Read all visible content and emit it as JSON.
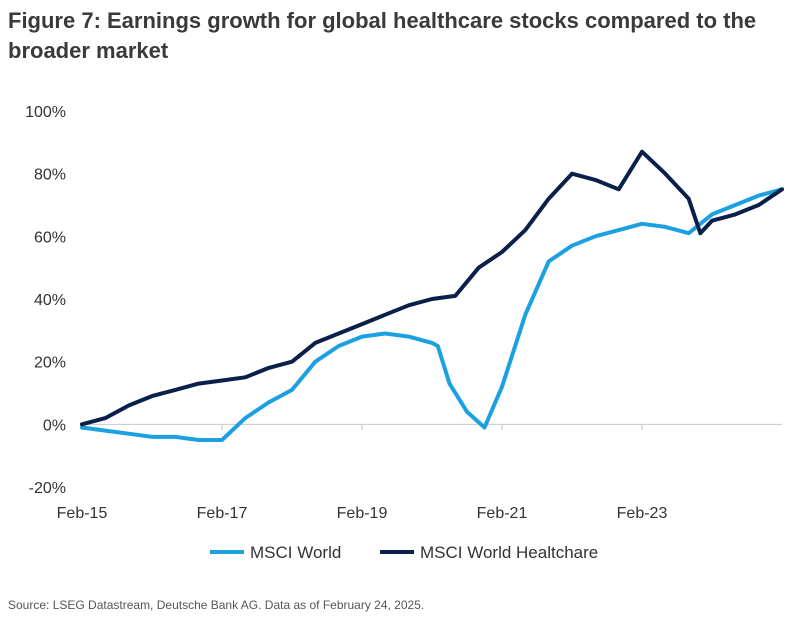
{
  "chart_data": {
    "type": "line",
    "title": "Figure 7: Earnings growth for global healthcare stocks compared to the broader market",
    "source": "Source: LSEG Datastream, Deutsche Bank AG. Data as of February 24, 2025.",
    "xlabel": "",
    "ylabel": "",
    "ylim": [
      -20,
      100
    ],
    "y_unit": "%",
    "y_ticks": [
      -20,
      0,
      20,
      40,
      60,
      80,
      100
    ],
    "y_tick_labels": [
      "-20%",
      "0%",
      "20%",
      "40%",
      "60%",
      "80%",
      "100%"
    ],
    "x_tick_labels": [
      "Feb-15",
      "Feb-17",
      "Feb-19",
      "Feb-21",
      "Feb-23"
    ],
    "x_ticks": [
      "2015-02",
      "2017-02",
      "2019-02",
      "2021-02",
      "2023-02"
    ],
    "xlim": [
      "2015-02",
      "2025-02"
    ],
    "grid": false,
    "legend_position": "bottom",
    "series": [
      {
        "name": "MSCI World",
        "color": "#1BA1E2",
        "x": [
          "2015-02",
          "2015-06",
          "2015-10",
          "2016-02",
          "2016-06",
          "2016-10",
          "2017-02",
          "2017-06",
          "2017-10",
          "2018-02",
          "2018-06",
          "2018-10",
          "2019-02",
          "2019-06",
          "2019-10",
          "2020-02",
          "2020-03",
          "2020-05",
          "2020-08",
          "2020-11",
          "2021-02",
          "2021-06",
          "2021-10",
          "2022-02",
          "2022-06",
          "2022-10",
          "2023-02",
          "2023-06",
          "2023-10",
          "2024-02",
          "2024-06",
          "2024-10",
          "2025-02"
        ],
        "values": [
          -1,
          -2,
          -3,
          -4,
          -4,
          -5,
          -5,
          2,
          7,
          11,
          20,
          25,
          28,
          29,
          28,
          26,
          25,
          13,
          4,
          -1,
          12,
          35,
          52,
          57,
          60,
          62,
          64,
          63,
          61,
          67,
          70,
          73,
          75
        ]
      },
      {
        "name": "MSCI World Healtchare",
        "color": "#0B1F4B",
        "x": [
          "2015-02",
          "2015-06",
          "2015-10",
          "2016-02",
          "2016-06",
          "2016-10",
          "2017-02",
          "2017-06",
          "2017-10",
          "2018-02",
          "2018-06",
          "2018-10",
          "2019-02",
          "2019-06",
          "2019-10",
          "2020-02",
          "2020-06",
          "2020-10",
          "2021-02",
          "2021-06",
          "2021-10",
          "2022-02",
          "2022-06",
          "2022-10",
          "2023-02",
          "2023-06",
          "2023-10",
          "2023-12",
          "2024-02",
          "2024-06",
          "2024-10",
          "2025-02"
        ],
        "values": [
          0,
          2,
          6,
          9,
          11,
          13,
          14,
          15,
          18,
          20,
          26,
          29,
          32,
          35,
          38,
          40,
          41,
          50,
          55,
          62,
          72,
          80,
          78,
          75,
          87,
          80,
          72,
          61,
          65,
          67,
          70,
          75
        ]
      }
    ]
  }
}
